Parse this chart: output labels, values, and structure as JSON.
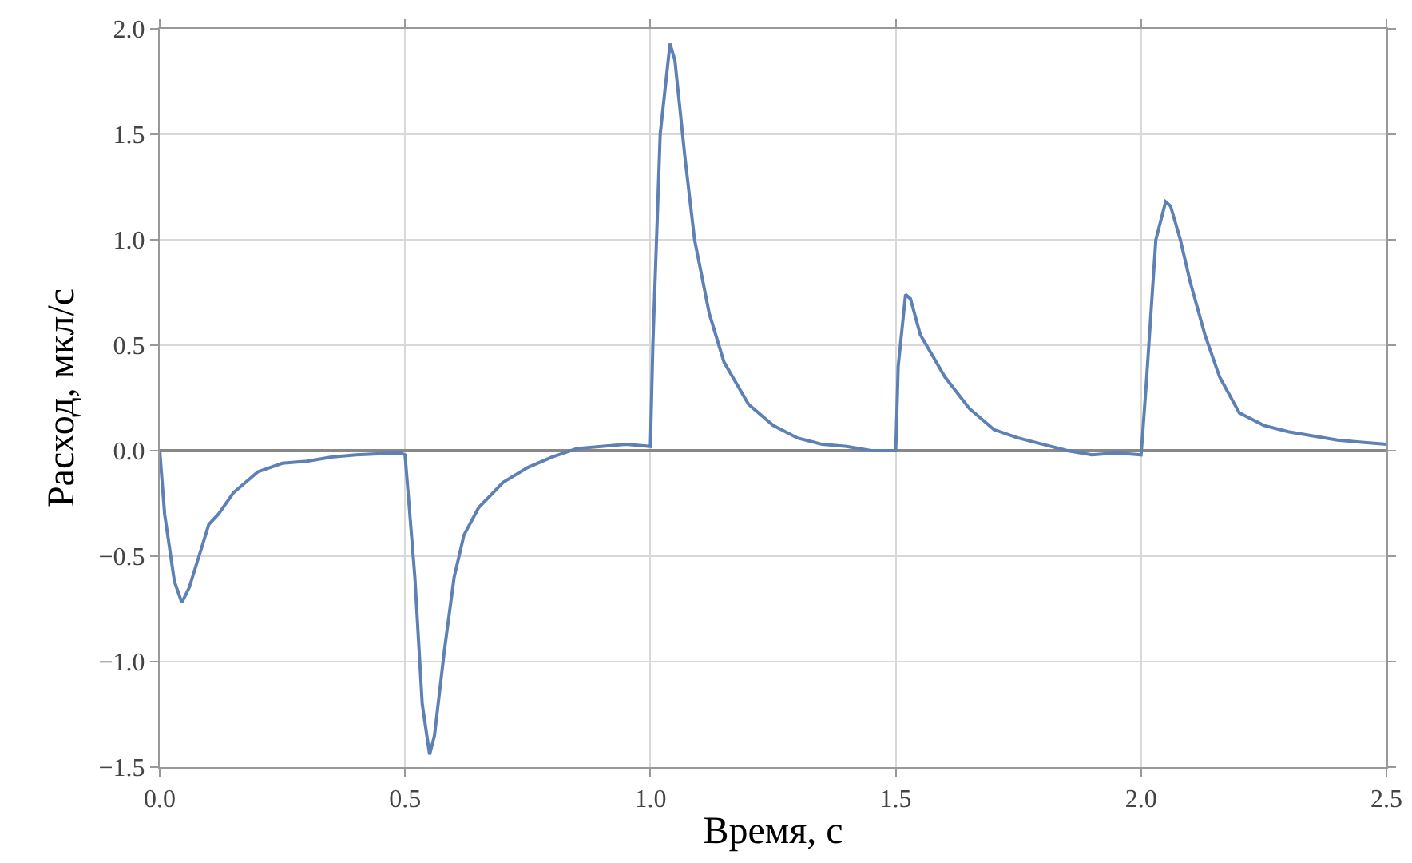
{
  "chart_data": {
    "type": "line",
    "xlabel": "Время, с",
    "ylabel": "Расход, мкл/с",
    "x": [
      0,
      0.01,
      0.03,
      0.045,
      0.06,
      0.08,
      0.1,
      0.12,
      0.15,
      0.2,
      0.25,
      0.3,
      0.35,
      0.4,
      0.49,
      0.5,
      0.52,
      0.535,
      0.55,
      0.56,
      0.58,
      0.6,
      0.62,
      0.65,
      0.7,
      0.75,
      0.8,
      0.85,
      0.9,
      0.95,
      1.0,
      1.005,
      1.02,
      1.04,
      1.05,
      1.07,
      1.09,
      1.12,
      1.15,
      1.2,
      1.25,
      1.3,
      1.35,
      1.4,
      1.45,
      1.5,
      1.505,
      1.52,
      1.53,
      1.55,
      1.6,
      1.65,
      1.7,
      1.75,
      1.8,
      1.85,
      1.9,
      1.95,
      2.0,
      2.01,
      2.03,
      2.05,
      2.06,
      2.08,
      2.1,
      2.13,
      2.16,
      2.2,
      2.25,
      2.3,
      2.35,
      2.4,
      2.45,
      2.5
    ],
    "series": [
      {
        "color": "#5e81b5",
        "values": [
          0,
          -0.3,
          -0.62,
          -0.72,
          -0.65,
          -0.5,
          -0.35,
          -0.3,
          -0.2,
          -0.1,
          -0.06,
          -0.05,
          -0.03,
          -0.02,
          -0.01,
          -0.02,
          -0.6,
          -1.2,
          -1.44,
          -1.35,
          -0.95,
          -0.6,
          -0.4,
          -0.27,
          -0.15,
          -0.08,
          -0.03,
          0.01,
          0.02,
          0.03,
          0.02,
          0.5,
          1.5,
          1.93,
          1.85,
          1.4,
          1.0,
          0.65,
          0.42,
          0.22,
          0.12,
          0.06,
          0.03,
          0.02,
          0,
          0,
          0.4,
          0.74,
          0.72,
          0.55,
          0.35,
          0.2,
          0.1,
          0.06,
          0.03,
          0,
          -0.02,
          -0.01,
          -0.02,
          0.3,
          1.0,
          1.18,
          1.16,
          1.0,
          0.8,
          0.55,
          0.35,
          0.18,
          0.12,
          0.09,
          0.07,
          0.05,
          0.04,
          0.03
        ]
      }
    ],
    "xlim": [
      0,
      2.5
    ],
    "xticks": [
      {
        "value": 0,
        "label": "0.0"
      },
      {
        "value": 0.5,
        "label": "0.5"
      },
      {
        "value": 1,
        "label": "1.0"
      },
      {
        "value": 1.5,
        "label": "1.5"
      },
      {
        "value": 2,
        "label": "2.0"
      },
      {
        "value": 2.5,
        "label": "2.5"
      }
    ],
    "ylim": [
      -1.5,
      2
    ],
    "yticks": [
      {
        "value": -1.5,
        "label": "−1.5"
      },
      {
        "value": -1,
        "label": "−1.0"
      },
      {
        "value": -0.5,
        "label": "−0.5"
      },
      {
        "value": 0,
        "label": "0.0"
      },
      {
        "value": 0.5,
        "label": "0.5"
      },
      {
        "value": 1,
        "label": "1.0"
      },
      {
        "value": 1.5,
        "label": "1.5"
      },
      {
        "value": 2,
        "label": "2.0"
      }
    ],
    "grid": true,
    "line_style": "solid",
    "marker": "none"
  }
}
